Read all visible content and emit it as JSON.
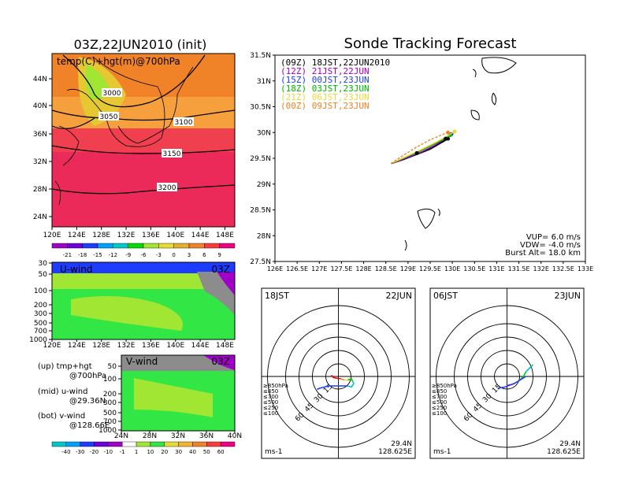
{
  "chart_data": [
    {
      "type": "heatmap",
      "title": "03Z,22JUN2010 (init)",
      "label": "temp(C)+hgt(m)@700hPa",
      "lon_ticks": [
        "120E",
        "124E",
        "128E",
        "132E",
        "136E",
        "140E",
        "144E",
        "148E"
      ],
      "lat_ticks": [
        "24N",
        "28N",
        "32N",
        "36N",
        "40N",
        "44N"
      ],
      "contours": [
        "3000",
        "3050",
        "3100",
        "3150",
        "3200"
      ],
      "colorbar": [
        "-21",
        "-18",
        "-15",
        "-12",
        "-9",
        "-6",
        "-3",
        "0",
        "3",
        "6",
        "9"
      ],
      "colorbar_colors": [
        "#a000c8",
        "#6e00dc",
        "#1e3cff",
        "#00a0ff",
        "#00c8c8",
        "#00dc00",
        "#a0e632",
        "#e6dc32",
        "#e6af2d",
        "#f08228",
        "#fa3c3c",
        "#f00082"
      ]
    },
    {
      "type": "heatmap",
      "label": "U-wind",
      "time": "03Z",
      "lon_ticks": [
        "120E",
        "124E",
        "128E",
        "132E",
        "136E",
        "140E",
        "144E",
        "148E"
      ],
      "p_ticks": [
        "30",
        "50",
        "100",
        "200",
        "300",
        "500",
        "700",
        "1000"
      ]
    },
    {
      "type": "heatmap",
      "label": "V-wind",
      "time": "03Z",
      "lat_ticks": [
        "24N",
        "28N",
        "32N",
        "36N",
        "40N"
      ],
      "p_ticks": [
        "50",
        "100",
        "200",
        "300",
        "500",
        "700",
        "1000"
      ],
      "colorbar": [
        "-40",
        "-30",
        "-20",
        "-10",
        "-1",
        "1",
        "10",
        "20",
        "30",
        "40",
        "50",
        "60"
      ]
    },
    {
      "type": "line",
      "title": "Sonde Tracking Forecast",
      "lon_ticks": [
        "126E",
        "126.5E",
        "127E",
        "127.5E",
        "128E",
        "128.5E",
        "129E",
        "129.5E",
        "130E",
        "130.5E",
        "131E",
        "131.5E",
        "132E",
        "132.5E",
        "133E"
      ],
      "lat_ticks": [
        "27.5N",
        "28N",
        "28.5N",
        "29N",
        "29.5N",
        "30N",
        "30.5N",
        "31N",
        "31.5N"
      ],
      "xlim": [
        126,
        133
      ],
      "ylim": [
        27.5,
        31.5
      ],
      "series": [
        {
          "name": "(09Z) 18JST,22JUN2010",
          "color": "#000000",
          "x": [
            128.62,
            128.9,
            129.2,
            129.5,
            129.7,
            129.9
          ],
          "y": [
            29.4,
            29.48,
            29.58,
            29.68,
            29.78,
            29.88
          ]
        },
        {
          "name": "(12Z) 21JST,22JUN",
          "color": "#a000c8",
          "x": [
            128.62,
            128.95,
            129.3,
            129.6,
            129.8,
            129.95
          ],
          "y": [
            29.4,
            29.5,
            29.62,
            29.75,
            29.86,
            29.95
          ]
        },
        {
          "name": "(15Z) 00JST,23JUN",
          "color": "#1e3cff",
          "x": [
            128.62,
            128.95,
            129.3,
            129.6,
            129.85,
            129.98
          ],
          "y": [
            29.4,
            29.52,
            29.65,
            29.78,
            29.9,
            29.97
          ]
        },
        {
          "name": "(18Z) 03JST,23JUN",
          "color": "#00b400",
          "x": [
            128.62,
            128.92,
            129.25,
            129.55,
            129.8,
            129.95
          ],
          "y": [
            29.4,
            29.51,
            29.63,
            29.76,
            29.87,
            29.95
          ]
        },
        {
          "name": "(21Z) 06JST,23JUN",
          "color": "#e6dc32",
          "x": [
            128.62,
            128.95,
            129.3,
            129.65,
            129.9,
            130.05
          ],
          "y": [
            29.4,
            29.53,
            29.67,
            29.82,
            29.94,
            30.02
          ]
        },
        {
          "name": "(00Z) 09JST,23JUN",
          "color": "#f08228",
          "x": [
            128.62,
            128.9,
            129.2,
            129.5,
            129.75,
            129.9
          ],
          "y": [
            29.4,
            29.56,
            29.72,
            29.86,
            29.95,
            30.0
          ]
        }
      ],
      "info": [
        "VUP= 6.0 m/s",
        "VDW= -4.0 m/s",
        "Burst Alt= 18.0 km"
      ]
    },
    {
      "type": "line",
      "label": "hodograph",
      "left_label": "18JST",
      "right_label": "22JUN",
      "rings": [
        "15",
        "30",
        "45",
        "60"
      ],
      "unit": "ms-1",
      "lat": "29.4N",
      "lon": "128.625E",
      "levels": [
        {
          "name": "≥850hPa",
          "color": "#f00000"
        },
        {
          "name": "≤850",
          "color": "#f08228"
        },
        {
          "name": "≤700",
          "color": "#e6dc32"
        },
        {
          "name": "≤500",
          "color": "#00c800"
        },
        {
          "name": "≤250",
          "color": "#00c8c8"
        },
        {
          "name": "≤100",
          "color": "#1e3cff"
        }
      ],
      "segments": [
        {
          "color": "#f00000",
          "u": [
            2,
            -4,
            -6
          ],
          "v": [
            -2,
            -1,
            1
          ]
        },
        {
          "color": "#f08228",
          "u": [
            2,
            5
          ],
          "v": [
            -2,
            -3
          ]
        },
        {
          "color": "#e6dc32",
          "u": [
            5,
            8
          ],
          "v": [
            -3,
            -3
          ]
        },
        {
          "color": "#00c800",
          "u": [
            8,
            11,
            12
          ],
          "v": [
            -3,
            -2,
            -4
          ]
        },
        {
          "color": "#00c8c8",
          "u": [
            12,
            13,
            11,
            8
          ],
          "v": [
            -4,
            -6,
            -9,
            -8
          ]
        },
        {
          "color": "#1e3cff",
          "u": [
            8,
            -2,
            -8,
            -16,
            -18
          ],
          "v": [
            -8,
            -8,
            -8,
            -10,
            -11
          ]
        }
      ]
    },
    {
      "type": "line",
      "label": "hodograph",
      "left_label": "06JST",
      "right_label": "23JUN",
      "rings": [
        "15",
        "30",
        "45",
        "60"
      ],
      "unit": "ms-1",
      "lat": "29.4N",
      "lon": "128.625E",
      "levels": [
        {
          "name": "≥850hPa",
          "color": "#f00000"
        },
        {
          "name": "≤850",
          "color": "#f08228"
        },
        {
          "name": "≤700",
          "color": "#e6dc32"
        },
        {
          "name": "≤500",
          "color": "#00c800"
        },
        {
          "name": "≤250",
          "color": "#00c8c8"
        },
        {
          "name": "≤100",
          "color": "#1e3cff"
        }
      ],
      "segments": [
        {
          "color": "#f00000",
          "u": [
            0,
            2,
            4
          ],
          "v": [
            -8,
            -7,
            -7
          ]
        },
        {
          "color": "#f08228",
          "u": [
            4,
            8
          ],
          "v": [
            -7,
            -5
          ]
        },
        {
          "color": "#e6dc32",
          "u": [
            8,
            11
          ],
          "v": [
            -5,
            -3
          ]
        },
        {
          "color": "#00c800",
          "u": [
            11,
            14,
            16
          ],
          "v": [
            -3,
            0,
            4
          ]
        },
        {
          "color": "#00c8c8",
          "u": [
            16,
            18,
            20,
            22
          ],
          "v": [
            4,
            6,
            8,
            10
          ]
        },
        {
          "color": "#1e3cff",
          "u": [
            16,
            6,
            -2,
            -8
          ],
          "v": [
            0,
            -6,
            -9,
            -10
          ]
        }
      ]
    }
  ],
  "side_notes": [
    {
      "line1": "(up)  tmp+hgt",
      "line2": "@700hPa"
    },
    {
      "line1": "(mid)  u-wind",
      "line2": "@29.36N"
    },
    {
      "line1": "(bot)  v-wind",
      "line2": "@128.66E"
    }
  ]
}
